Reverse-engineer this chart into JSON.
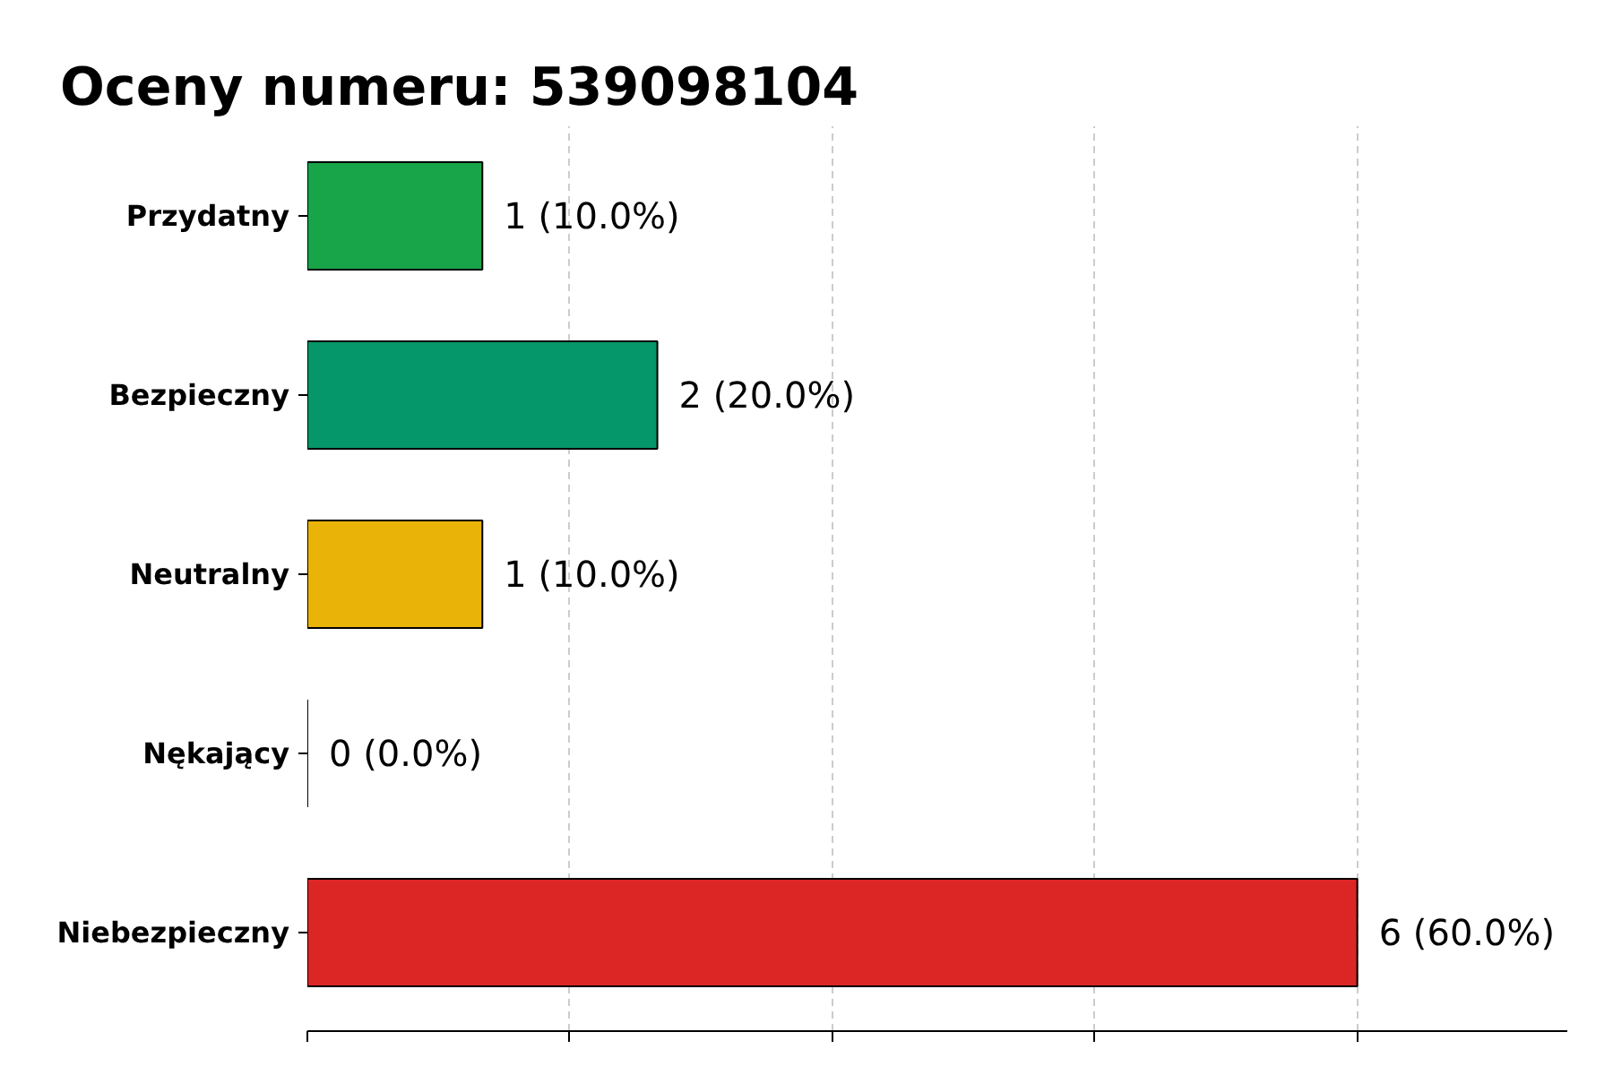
{
  "chart_data": {
    "type": "bar",
    "orientation": "horizontal",
    "title": "Oceny numeru: 539098104",
    "categories": [
      "Przydatny",
      "Bezpieczny",
      "Neutralny",
      "Nękający",
      "Niebezpieczny"
    ],
    "values": [
      1,
      2,
      1,
      0,
      6
    ],
    "colors": [
      "#18a448",
      "#059669",
      "#eab308",
      "#000000",
      "#dc2626"
    ],
    "value_labels": [
      "1 (10.0%)",
      "2 (20.0%)",
      "1 (10.0%)",
      "0 (0.0%)",
      "6 (60.0%)"
    ],
    "xlim": [
      0,
      7.2
    ],
    "xticks": [
      {
        "value": 0,
        "label": null
      },
      {
        "value": 1.5,
        "label": null
      },
      {
        "value": 3,
        "label": null
      },
      {
        "value": 4.5,
        "label": null
      },
      {
        "value": 6,
        "label": null
      }
    ],
    "tick_labels": "y",
    "grid": "x"
  }
}
